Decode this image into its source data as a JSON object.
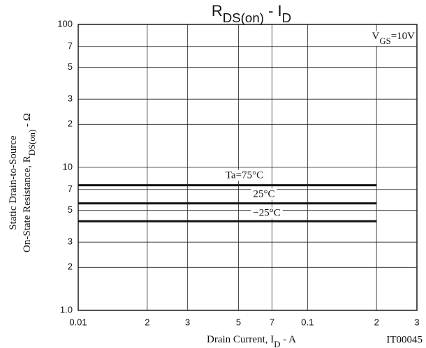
{
  "chart_data": {
    "type": "line",
    "title": [
      "R",
      "DS(on)",
      "  -  I",
      "D"
    ],
    "annotation": [
      "V",
      "GS",
      "=10V"
    ],
    "code": "IT00045",
    "xlabel": [
      "Drain Current, I",
      "D",
      "  -  A"
    ],
    "ylabel": [
      [
        "Static Drain-to-Source"
      ],
      [
        "On-State Resistance, R",
        "DS(on)",
        "  -  Ω"
      ]
    ],
    "xscale": "log",
    "yscale": "log",
    "grid": true,
    "xlim": [
      0.01,
      0.3
    ],
    "xticks": [
      0.01,
      {
        "value": 0.02,
        "label": "2"
      },
      {
        "value": 0.03,
        "label": "3"
      },
      {
        "value": 0.05,
        "label": "5"
      },
      {
        "value": 0.07,
        "label": "7"
      },
      0.1,
      {
        "value": 0.2,
        "label": "2"
      },
      {
        "value": 0.3,
        "label": "3"
      }
    ],
    "ylim": [
      1,
      100
    ],
    "yticks": [
      {
        "value": 1,
        "label": "1.0"
      },
      {
        "value": 2,
        "label": "2"
      },
      {
        "value": 3,
        "label": "3"
      },
      {
        "value": 5,
        "label": "5"
      },
      {
        "value": 7,
        "label": "7"
      },
      10,
      {
        "value": 20,
        "label": "2"
      },
      {
        "value": 30,
        "label": "3"
      },
      {
        "value": 50,
        "label": "5"
      },
      {
        "value": 70,
        "label": "7"
      },
      100
    ],
    "series": [
      {
        "name": "Ta=75°C",
        "color": "#111111",
        "x": [
          0.01,
          0.2
        ],
        "values": [
          7.5,
          7.5
        ]
      },
      {
        "name": "25°C",
        "color": "#111111",
        "x": [
          0.01,
          0.2
        ],
        "values": [
          5.6,
          5.6
        ]
      },
      {
        "name": "−25°C",
        "color": "#111111",
        "x": [
          0.01,
          0.2
        ],
        "values": [
          4.2,
          4.2
        ]
      }
    ]
  }
}
